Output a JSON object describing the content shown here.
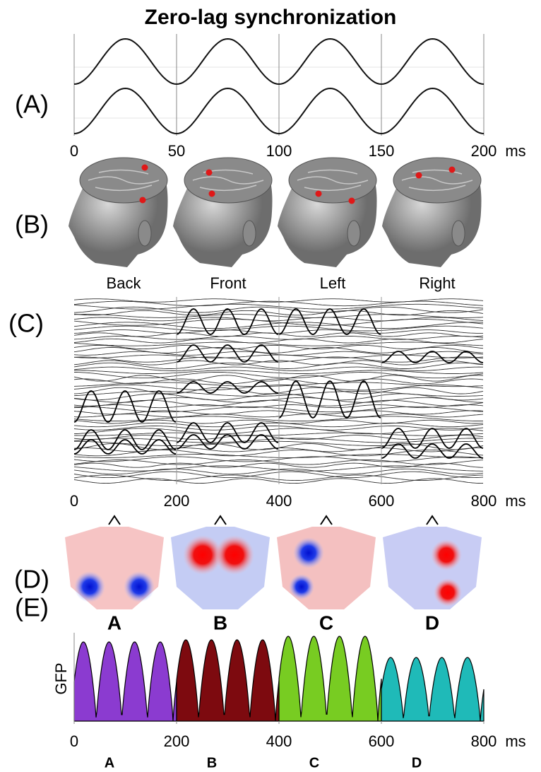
{
  "title": "Zero-lag synchronization",
  "panel_labels": [
    "(A)",
    "(B)",
    "(C)",
    "(D)",
    "(E)"
  ],
  "panel_a": {
    "xlim": [
      0,
      200
    ],
    "xticks": [
      0,
      50,
      100,
      150,
      200
    ],
    "unit": "ms"
  },
  "panel_b": {
    "labels": [
      "Back",
      "Front",
      "Left",
      "Right"
    ]
  },
  "panel_c": {
    "xlim": [
      0,
      800
    ],
    "xticks": [
      0,
      200,
      400,
      600,
      800
    ],
    "unit": "ms"
  },
  "panel_d": {
    "labels": [
      "A",
      "B",
      "C",
      "D"
    ]
  },
  "panel_e": {
    "ylabel": "GFP",
    "xlim": [
      0,
      800
    ],
    "xticks": [
      0,
      200,
      400,
      600,
      800
    ],
    "unit": "ms",
    "segments": [
      {
        "name": "A",
        "color": "#8b3bd0"
      },
      {
        "name": "B",
        "color": "#7d0a0f"
      },
      {
        "name": "C",
        "color": "#78cc22"
      },
      {
        "name": "D",
        "color": "#1fbab8"
      }
    ]
  }
}
